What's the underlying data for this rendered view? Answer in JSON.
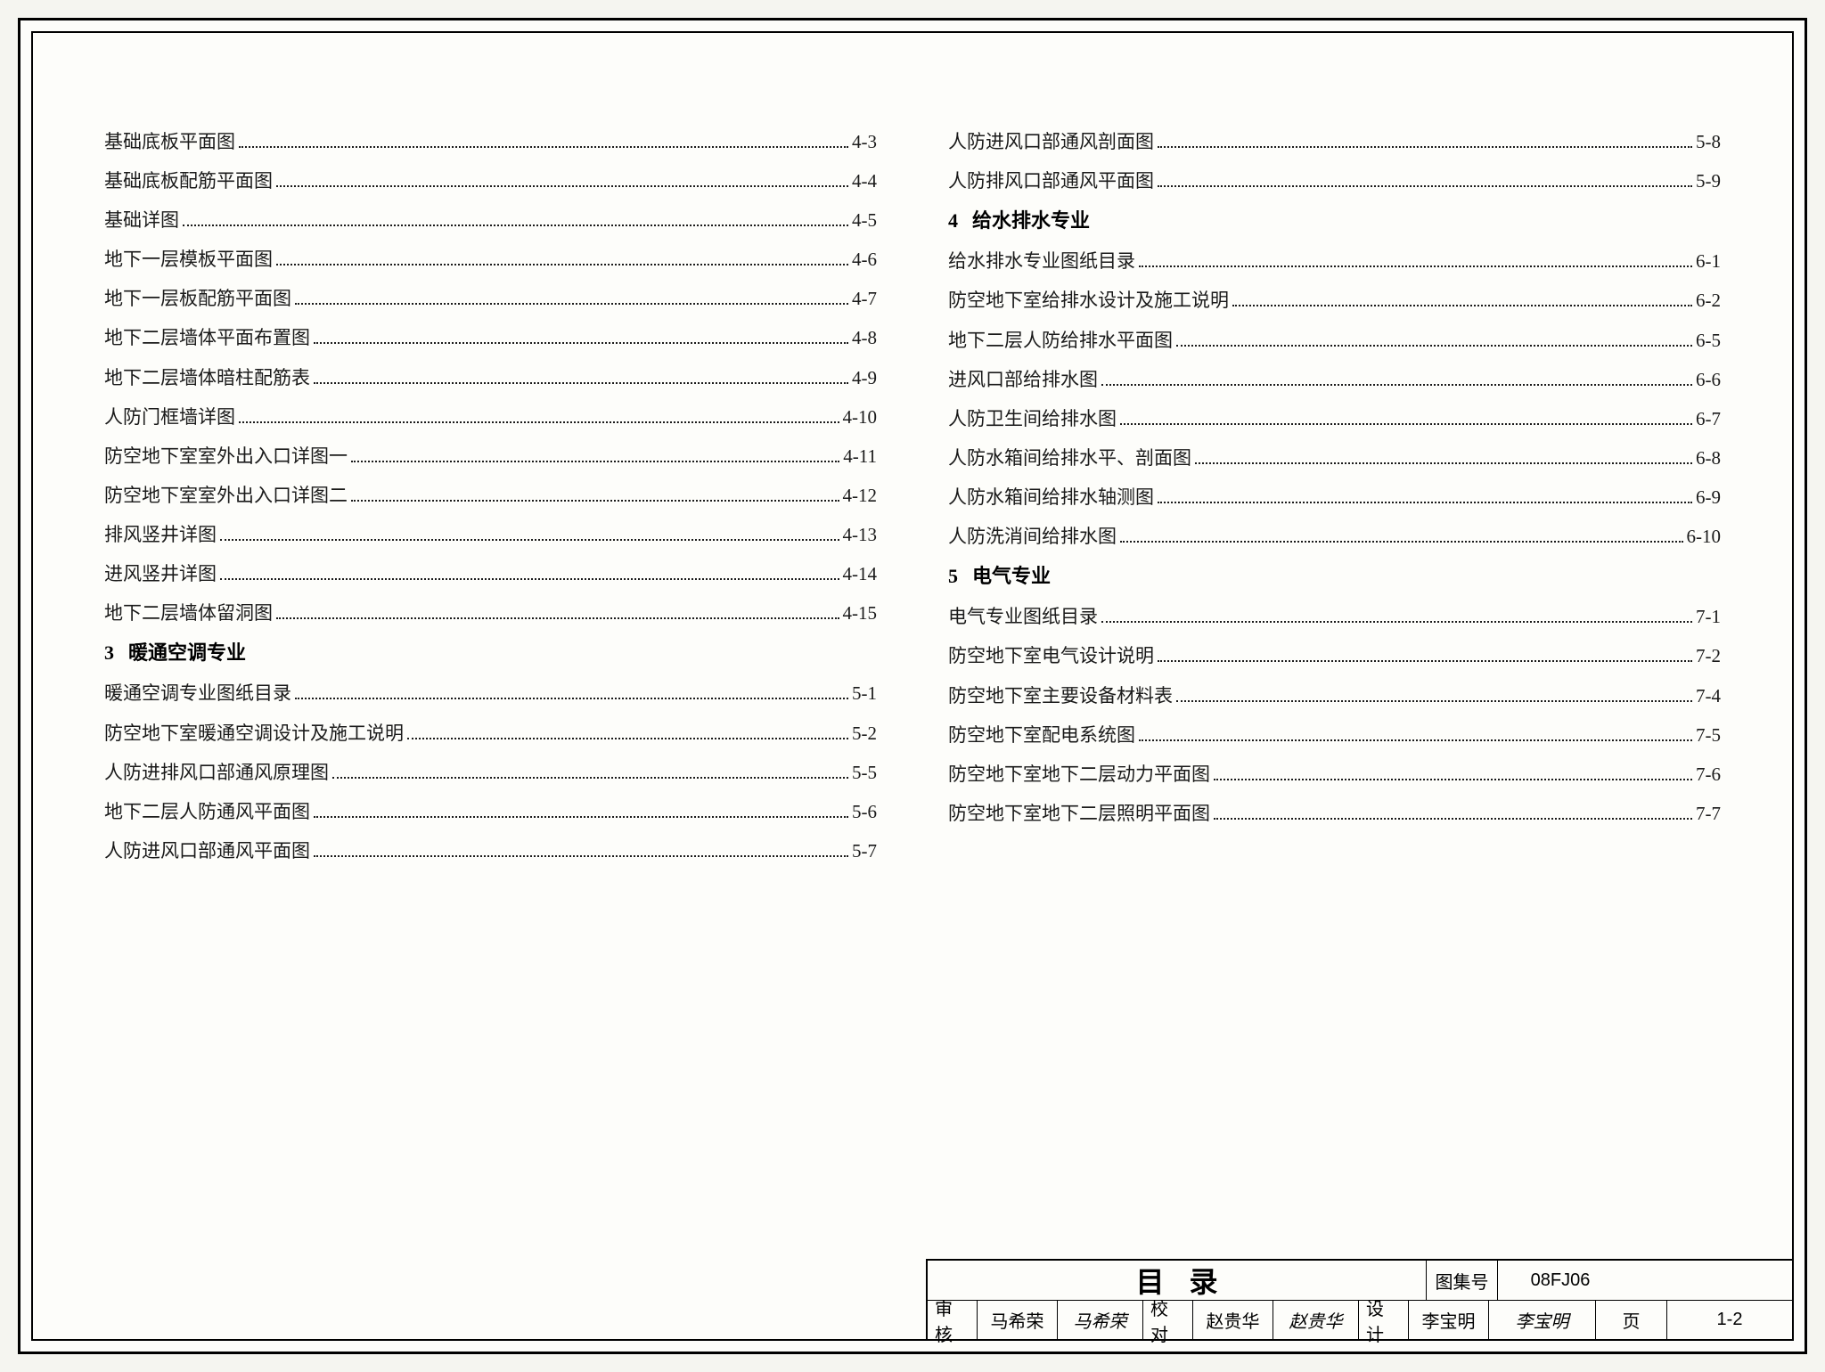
{
  "left_column": [
    {
      "type": "entry",
      "title": "基础底板平面图",
      "page": "4-3"
    },
    {
      "type": "entry",
      "title": "基础底板配筋平面图",
      "page": "4-4"
    },
    {
      "type": "entry",
      "title": "基础详图",
      "page": "4-5"
    },
    {
      "type": "entry",
      "title": "地下一层模板平面图",
      "page": "4-6"
    },
    {
      "type": "entry",
      "title": "地下一层板配筋平面图",
      "page": "4-7"
    },
    {
      "type": "entry",
      "title": "地下二层墙体平面布置图",
      "page": "4-8"
    },
    {
      "type": "entry",
      "title": "地下二层墙体暗柱配筋表",
      "page": "4-9"
    },
    {
      "type": "entry",
      "title": "人防门框墙详图",
      "page": "4-10"
    },
    {
      "type": "entry",
      "title": "防空地下室室外出入口详图一",
      "page": "4-11"
    },
    {
      "type": "entry",
      "title": "防空地下室室外出入口详图二",
      "page": "4-12"
    },
    {
      "type": "entry",
      "title": "排风竖井详图",
      "page": "4-13"
    },
    {
      "type": "entry",
      "title": "进风竖井详图",
      "page": "4-14"
    },
    {
      "type": "entry",
      "title": "地下二层墙体留洞图",
      "page": "4-15"
    },
    {
      "type": "heading",
      "num": "3",
      "title": "暖通空调专业"
    },
    {
      "type": "entry",
      "title": "暖通空调专业图纸目录",
      "page": "5-1"
    },
    {
      "type": "entry",
      "title": "防空地下室暖通空调设计及施工说明",
      "page": "5-2"
    },
    {
      "type": "entry",
      "title": "人防进排风口部通风原理图",
      "page": "5-5"
    },
    {
      "type": "entry",
      "title": "地下二层人防通风平面图",
      "page": "5-6"
    },
    {
      "type": "entry",
      "title": "人防进风口部通风平面图",
      "page": "5-7"
    }
  ],
  "right_column": [
    {
      "type": "entry",
      "title": "人防进风口部通风剖面图",
      "page": "5-8"
    },
    {
      "type": "entry",
      "title": "人防排风口部通风平面图",
      "page": "5-9"
    },
    {
      "type": "heading",
      "num": "4",
      "title": "给水排水专业"
    },
    {
      "type": "entry",
      "title": "给水排水专业图纸目录",
      "page": "6-1"
    },
    {
      "type": "entry",
      "title": "防空地下室给排水设计及施工说明",
      "page": "6-2"
    },
    {
      "type": "entry",
      "title": "地下二层人防给排水平面图",
      "page": "6-5"
    },
    {
      "type": "entry",
      "title": "进风口部给排水图",
      "page": "6-6"
    },
    {
      "type": "entry",
      "title": "人防卫生间给排水图",
      "page": "6-7"
    },
    {
      "type": "entry",
      "title": "人防水箱间给排水平、剖面图",
      "page": "6-8"
    },
    {
      "type": "entry",
      "title": "人防水箱间给排水轴测图",
      "page": "6-9"
    },
    {
      "type": "entry",
      "title": "人防洗消间给排水图",
      "page": "6-10"
    },
    {
      "type": "heading",
      "num": "5",
      "title": "电气专业"
    },
    {
      "type": "entry",
      "title": "电气专业图纸目录",
      "page": "7-1"
    },
    {
      "type": "entry",
      "title": "防空地下室电气设计说明",
      "page": "7-2"
    },
    {
      "type": "entry",
      "title": "防空地下室主要设备材料表",
      "page": "7-4"
    },
    {
      "type": "entry",
      "title": "防空地下室配电系统图",
      "page": "7-5"
    },
    {
      "type": "entry",
      "title": "防空地下室地下二层动力平面图",
      "page": "7-6"
    },
    {
      "type": "entry",
      "title": "防空地下室地下二层照明平面图",
      "page": "7-7"
    }
  ],
  "title_block": {
    "main_title": "目录",
    "atlas_label": "图集号",
    "atlas_code": "08FJ06",
    "review_label": "审核",
    "review_name": "马希荣",
    "review_sig": "马希荣",
    "check_label": "校对",
    "check_name": "赵贵华",
    "check_sig": "赵贵华",
    "design_label": "设计",
    "design_name": "李宝明",
    "design_sig": "李宝明",
    "page_label": "页",
    "page_num": "1-2"
  }
}
